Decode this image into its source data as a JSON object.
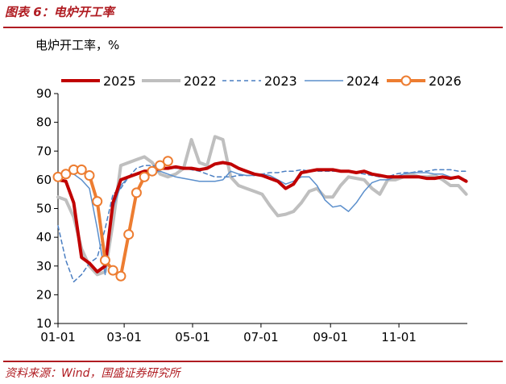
{
  "figure": {
    "title": "图表 6：电炉开工率",
    "source": "资料来源：Wind，国盛证券研究所"
  },
  "colors": {
    "title_red": "#b01c22",
    "s2025": "#c00000",
    "s2022": "#bfbfbf",
    "s2023": "#4a7ec2",
    "s2024": "#5b8fcc",
    "s2026": "#ed7d31",
    "axis": "#000000"
  },
  "chart_data": {
    "type": "line",
    "title": "电炉开工率，%",
    "xlabel": "",
    "ylabel": "",
    "ylim": [
      10,
      90
    ],
    "yticks": [
      10,
      20,
      30,
      40,
      50,
      60,
      70,
      80,
      90
    ],
    "xlim": [
      0,
      365
    ],
    "xticks": [
      {
        "day": 0,
        "label": "01-01"
      },
      {
        "day": 59,
        "label": "03-01"
      },
      {
        "day": 120,
        "label": "05-01"
      },
      {
        "day": 181,
        "label": "07-01"
      },
      {
        "day": 243,
        "label": "09-01"
      },
      {
        "day": 304,
        "label": "11-01"
      }
    ],
    "legend_position": "top",
    "series": [
      {
        "name": "2025",
        "key": "s2025",
        "x": [
          0,
          7,
          14,
          21,
          28,
          35,
          42,
          49,
          56,
          63,
          70,
          77,
          84,
          91,
          98,
          105,
          112,
          119,
          126,
          133,
          140,
          147,
          154,
          161,
          168,
          175,
          182,
          189,
          196,
          203,
          210,
          217,
          224,
          231,
          238,
          245,
          252,
          259,
          266,
          273,
          280,
          287,
          294,
          301,
          308,
          315,
          322,
          329,
          336,
          343,
          350,
          357,
          364
        ],
        "y": [
          60,
          59.5,
          52,
          33,
          31,
          28,
          30,
          52,
          60,
          61,
          62,
          63,
          63,
          64,
          64,
          64.5,
          64,
          64,
          63.5,
          64,
          65.5,
          66,
          65.5,
          64,
          63,
          62,
          61.5,
          60.5,
          59.5,
          57,
          58.5,
          62.5,
          63,
          63.5,
          63.5,
          63.5,
          63,
          63,
          62.5,
          63,
          62,
          61.5,
          61,
          61,
          61,
          61,
          61,
          60.5,
          60.5,
          61,
          60.5,
          61,
          59.5
        ]
      },
      {
        "name": "2022",
        "key": "s2022",
        "x": [
          0,
          7,
          14,
          21,
          28,
          35,
          42,
          49,
          56,
          63,
          70,
          77,
          84,
          91,
          98,
          105,
          112,
          119,
          126,
          133,
          140,
          147,
          154,
          161,
          168,
          175,
          182,
          189,
          196,
          203,
          210,
          217,
          224,
          231,
          238,
          245,
          252,
          259,
          266,
          273,
          280,
          287,
          294,
          301,
          308,
          315,
          322,
          329,
          336,
          343,
          350,
          357,
          364
        ],
        "y": [
          54,
          53,
          47,
          36,
          30,
          27,
          28,
          45,
          65,
          66,
          67,
          68,
          66,
          62,
          61,
          62,
          64,
          74,
          66,
          65,
          75,
          74,
          61,
          58,
          57,
          56,
          55,
          51,
          47.5,
          48,
          49,
          52,
          56,
          57,
          54,
          54,
          58,
          61,
          60.5,
          60,
          57,
          55,
          60,
          60,
          61,
          62,
          61,
          61,
          61.5,
          60,
          58,
          58,
          55
        ]
      },
      {
        "name": "2023",
        "key": "s2023",
        "dashed": true,
        "x": [
          0,
          7,
          14,
          21,
          28,
          35,
          42,
          49,
          56,
          63,
          70,
          77,
          84,
          91,
          98,
          105,
          112,
          119,
          126,
          133,
          140,
          147,
          154,
          161,
          168,
          175,
          182,
          189,
          196,
          203,
          210,
          217,
          224,
          231,
          238,
          245,
          252,
          259,
          266,
          273,
          280,
          287,
          294,
          301,
          308,
          315,
          322,
          329,
          336,
          343,
          350,
          357,
          364
        ],
        "y": [
          44,
          32,
          24.5,
          27,
          31,
          33,
          43,
          55,
          57,
          61,
          64,
          65,
          65,
          64.5,
          64,
          64,
          64,
          63.5,
          63,
          62,
          61,
          61,
          61,
          61.5,
          61.5,
          61.5,
          62,
          62.5,
          62.5,
          63,
          63,
          63.5,
          63,
          63,
          63,
          63,
          63,
          63,
          62.5,
          62,
          61.5,
          61,
          61,
          62,
          62.5,
          62.5,
          63,
          63,
          63.5,
          63.5,
          63.5,
          63,
          63
        ]
      },
      {
        "name": "2024",
        "key": "s2024",
        "x": [
          0,
          7,
          14,
          21,
          28,
          35,
          42,
          49,
          56,
          63,
          70,
          77,
          84,
          91,
          98,
          105,
          112,
          119,
          126,
          133,
          140,
          147,
          154,
          161,
          168,
          175,
          182,
          189,
          196,
          203,
          210,
          217,
          224,
          231,
          238,
          245,
          252,
          259,
          266,
          273,
          280,
          287,
          294,
          301,
          308,
          315,
          322,
          329,
          336,
          343,
          350,
          357,
          364
        ],
        "y": [
          61,
          62,
          62,
          60,
          57,
          43,
          27,
          50,
          58,
          61,
          62,
          62.5,
          62.5,
          63,
          62,
          61,
          60.5,
          60,
          59.5,
          59.5,
          59.5,
          60,
          63,
          62,
          61.5,
          61.5,
          62,
          61.5,
          60,
          58.5,
          59.5,
          61,
          61,
          58,
          53,
          50.5,
          51,
          49,
          52,
          56,
          59,
          60,
          60,
          61,
          62,
          62.5,
          62.5,
          62.5,
          62,
          62,
          61,
          60.5,
          60
        ]
      },
      {
        "name": "2026",
        "key": "s2026",
        "markers": true,
        "x": [
          0,
          7,
          14,
          21,
          28,
          35,
          42,
          49,
          56,
          63,
          70,
          77,
          84,
          91,
          98
        ],
        "y": [
          61,
          62,
          63.5,
          63.5,
          61.5,
          52.5,
          32,
          28.5,
          26.5,
          41,
          55.5,
          61,
          63,
          65,
          66.5
        ]
      }
    ]
  }
}
